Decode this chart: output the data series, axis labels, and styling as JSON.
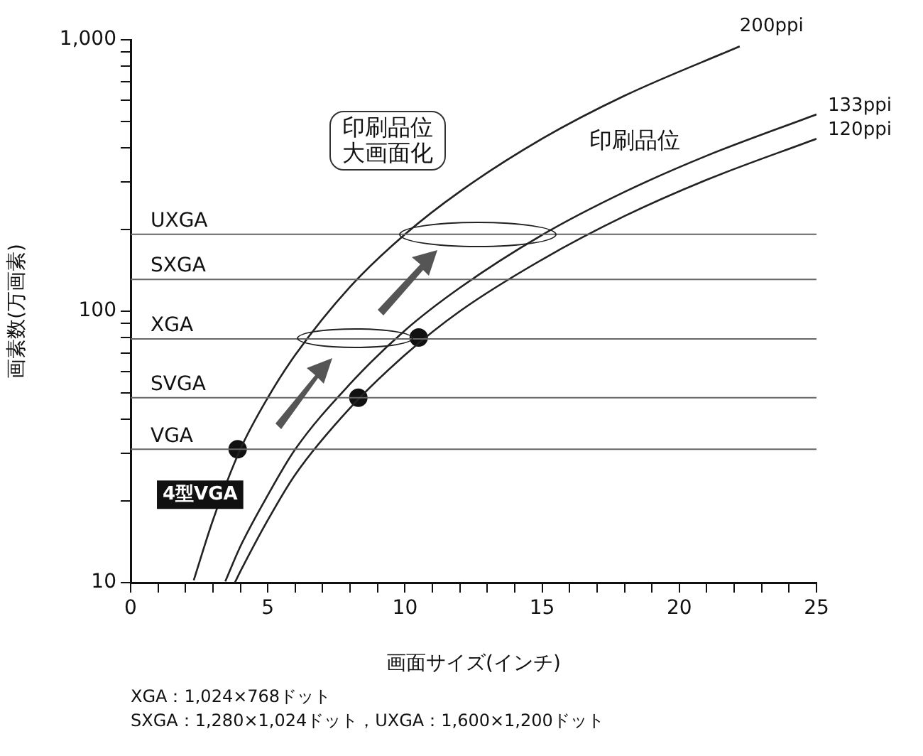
{
  "chart_data": {
    "type": "line",
    "xlabel": "画面サイズ(インチ)",
    "ylabel": "画素数(万画素)",
    "log": "y",
    "xlim": [
      0,
      25
    ],
    "xticks": [
      0,
      {
        "value": 1,
        "label": null
      },
      {
        "value": 2,
        "label": null
      },
      {
        "value": 3,
        "label": null
      },
      {
        "value": 4,
        "label": null
      },
      5,
      {
        "value": 6,
        "label": null
      },
      {
        "value": 7,
        "label": null
      },
      {
        "value": 8,
        "label": null
      },
      {
        "value": 9,
        "label": null
      },
      10,
      {
        "value": 11,
        "label": null
      },
      {
        "value": 12,
        "label": null
      },
      {
        "value": 13,
        "label": null
      },
      {
        "value": 14,
        "label": null
      },
      15,
      {
        "value": 16,
        "label": null
      },
      {
        "value": 17,
        "label": null
      },
      {
        "value": 18,
        "label": null
      },
      {
        "value": 19,
        "label": null
      },
      20,
      {
        "value": 21,
        "label": null
      },
      {
        "value": 22,
        "label": null
      },
      {
        "value": 23,
        "label": null
      },
      {
        "value": 24,
        "label": null
      },
      25
    ],
    "ylim": [
      10,
      1000
    ],
    "yticks": [
      10,
      {
        "value": 20,
        "label": null
      },
      {
        "value": 30,
        "label": null
      },
      {
        "value": 40,
        "label": null
      },
      {
        "value": 50,
        "label": null
      },
      {
        "value": 60,
        "label": null
      },
      {
        "value": 70,
        "label": null
      },
      {
        "value": 80,
        "label": null
      },
      {
        "value": 90,
        "label": null
      },
      100,
      {
        "value": 200,
        "label": null
      },
      {
        "value": 300,
        "label": null
      },
      {
        "value": 400,
        "label": null
      },
      {
        "value": 500,
        "label": null
      },
      {
        "value": 600,
        "label": null
      },
      {
        "value": 700,
        "label": null
      },
      {
        "value": 800,
        "label": null
      },
      {
        "value": 900,
        "label": null
      },
      {
        "value": 1000,
        "label": "1,000"
      }
    ],
    "legend": false,
    "series": [
      {
        "name": "200ppi",
        "color": "#222222",
        "marker": "none",
        "x": [
          2.3,
          3,
          4,
          5,
          6,
          8,
          10,
          12,
          15,
          18,
          22.2
        ],
        "values": [
          10.2,
          17,
          31,
          48,
          69,
          123,
          192,
          276,
          432,
          622,
          946
        ]
      },
      {
        "name": "133ppi",
        "color": "#222222",
        "marker": "none",
        "x": [
          3.45,
          4,
          5,
          6,
          8,
          10,
          12,
          15,
          18,
          21,
          25
        ],
        "values": [
          10.1,
          13.6,
          21,
          31,
          54,
          85,
          122,
          191,
          275,
          374,
          531
        ]
      },
      {
        "name": "120ppi",
        "color": "#222222",
        "marker": "none",
        "x": [
          3.8,
          4,
          5,
          6,
          8,
          10,
          12,
          15,
          18,
          21,
          25
        ],
        "values": [
          10,
          11,
          17,
          25,
          44,
          69,
          100,
          155,
          224,
          305,
          432
        ]
      },
      {
        "type": "scatter",
        "color": "#111111",
        "marker": "circle",
        "x": [
          3.9,
          8.3,
          10.5
        ],
        "values": [
          31,
          48,
          80
        ]
      }
    ],
    "ref_lines": [
      {
        "axis": "y",
        "value": 192,
        "label": "UXGA",
        "color": "#666666"
      },
      {
        "axis": "y",
        "value": 131,
        "label": "SXGA",
        "color": "#666666"
      },
      {
        "axis": "y",
        "value": 79,
        "label": "XGA",
        "color": "#666666"
      },
      {
        "axis": "y",
        "value": 48,
        "label": "SVGA",
        "color": "#666666"
      },
      {
        "axis": "y",
        "value": 31,
        "label": "VGA",
        "color": "#666666"
      }
    ],
    "annotations": [
      "印刷品位大画面化",
      "印刷品位",
      {
        "text": "4型VGA",
        "x": 3.9,
        "y": 31
      },
      "XGA：1,024×768ドット",
      "SXGA：1,280×1,024ドット，UXGA：1,600×1,200ドット"
    ]
  }
}
